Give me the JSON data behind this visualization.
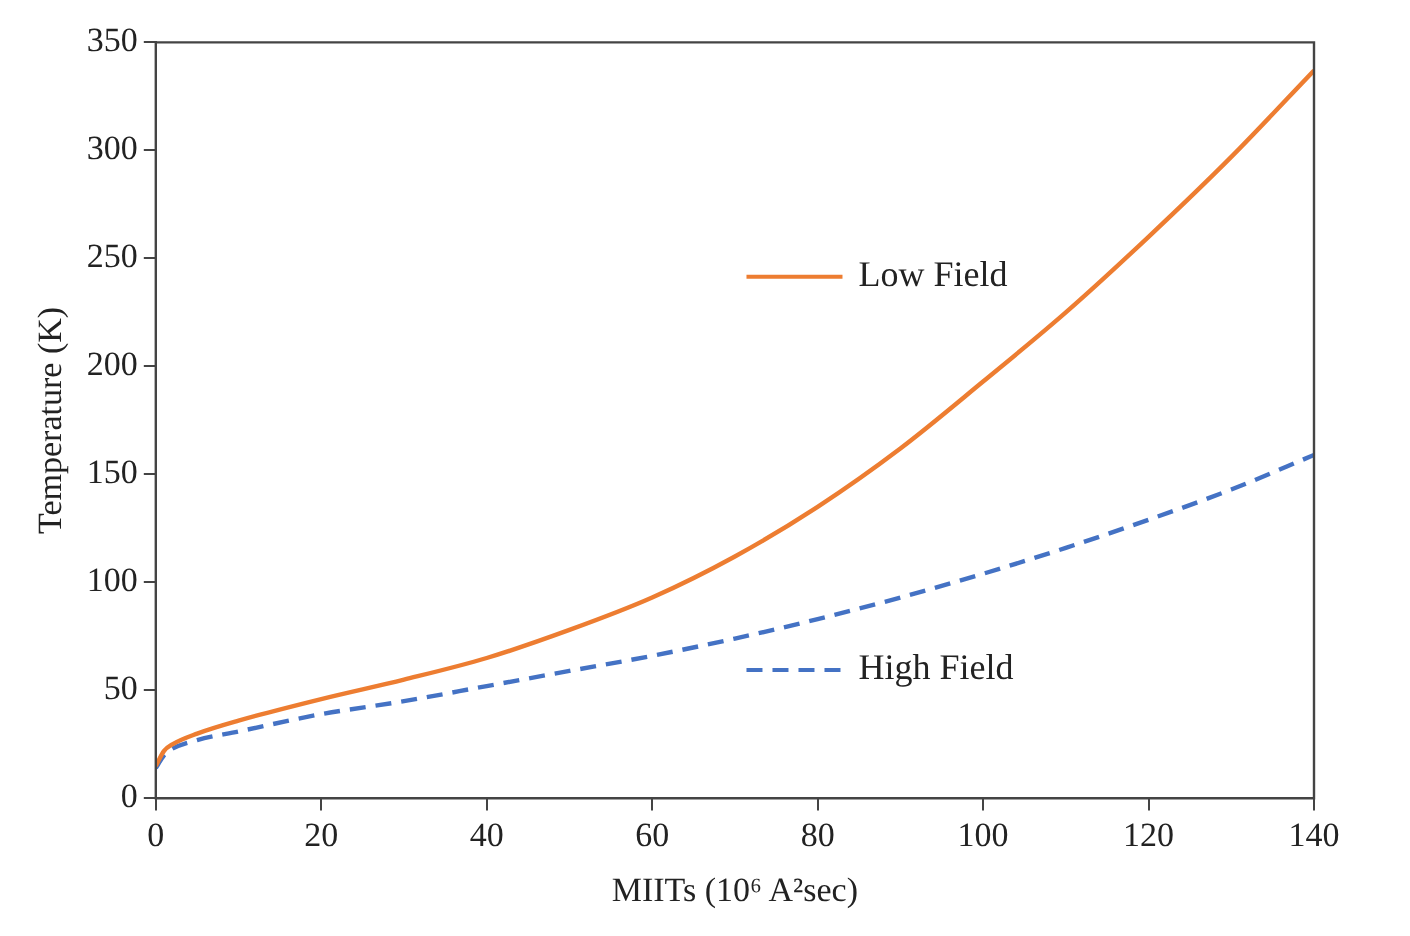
{
  "chart_data": {
    "type": "line",
    "xlabel": "MIITs (10⁶ A²sec)",
    "ylabel": "Temperature (K)",
    "xlim": [
      0,
      140
    ],
    "xticks": [
      0,
      20,
      40,
      60,
      80,
      100,
      120,
      140
    ],
    "ylim": [
      0,
      350
    ],
    "yticks": [
      0,
      50,
      100,
      150,
      200,
      250,
      300,
      350
    ],
    "grid": false,
    "legend": "right",
    "marker": "none",
    "series": [
      {
        "name": "Low Field",
        "color": "#ed7d31",
        "line_style": "solid",
        "x": [
          0,
          1,
          2,
          5,
          10,
          20,
          30,
          40,
          50,
          60,
          70,
          80,
          90,
          100,
          110,
          120,
          130,
          140
        ],
        "values": [
          15,
          22,
          25,
          30,
          36,
          46,
          55,
          65,
          78,
          93,
          112,
          135,
          162,
          193,
          225,
          260,
          297,
          337
        ]
      },
      {
        "name": "High Field",
        "color": "#4472c4",
        "line_style": "dashed",
        "x": [
          0,
          1,
          2,
          5,
          10,
          20,
          30,
          40,
          50,
          60,
          70,
          80,
          90,
          100,
          110,
          120,
          130,
          140
        ],
        "values": [
          14,
          20,
          23,
          27,
          31,
          39,
          45,
          52,
          59,
          66,
          74,
          83,
          93,
          104,
          116,
          129,
          143,
          159
        ]
      }
    ]
  }
}
